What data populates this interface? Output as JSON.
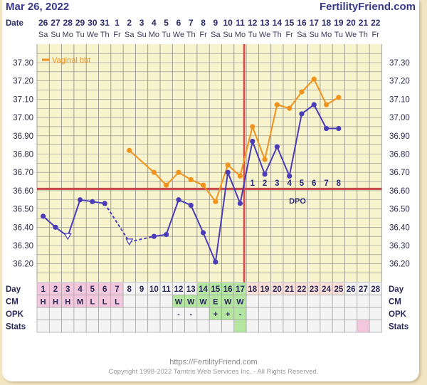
{
  "header": {
    "date": "Mar 26, 2022",
    "site": "FertilityFriend.com"
  },
  "footer": {
    "url": "https://FertilityFriend.com",
    "copyright": "Copyright 1998-2022 Tamtris Web Services Inc. - All Rights Reserved."
  },
  "chart_data": {
    "type": "line",
    "date_row_label": "Date",
    "dates": [
      "26",
      "27",
      "28",
      "29",
      "30",
      "31",
      "1",
      "2",
      "3",
      "4",
      "5",
      "6",
      "7",
      "8",
      "9",
      "10",
      "11",
      "12",
      "13",
      "14",
      "15",
      "16",
      "17",
      "18",
      "19",
      "20",
      "21",
      "22"
    ],
    "weekdays": [
      "Sa",
      "Su",
      "Mo",
      "Tu",
      "We",
      "Th",
      "Fr",
      "Sa",
      "Su",
      "Mo",
      "Tu",
      "We",
      "Th",
      "Fr",
      "Sa",
      "Su",
      "Mo",
      "Tu",
      "We",
      "Th",
      "Fr",
      "Sa",
      "Su",
      "Mo",
      "Tu",
      "We",
      "Th",
      "Fr"
    ],
    "y_ticks": [
      "37.30",
      "37.20",
      "37.10",
      "37.00",
      "36.90",
      "36.80",
      "36.70",
      "36.60",
      "36.50",
      "36.40",
      "36.30",
      "36.20"
    ],
    "ylim": [
      36.15,
      37.35
    ],
    "legend": "Vaginal bbt",
    "series": [
      {
        "name": "Vaginal bbt",
        "color": "#f0921e",
        "points": [
          [
            8,
            36.82
          ],
          [
            10,
            36.7
          ],
          [
            11,
            36.63
          ],
          [
            12,
            36.7
          ],
          [
            13,
            36.66
          ],
          [
            14,
            36.63
          ],
          [
            15,
            36.54
          ],
          [
            16,
            36.74
          ],
          [
            17,
            36.68
          ],
          [
            18,
            36.95
          ],
          [
            19,
            36.77
          ],
          [
            20,
            37.07
          ],
          [
            21,
            37.05
          ],
          [
            22,
            37.14
          ],
          [
            23,
            37.21
          ],
          [
            24,
            37.07
          ],
          [
            25,
            37.11
          ]
        ]
      },
      {
        "color": "#4a3cb8",
        "points": [
          [
            1,
            36.46
          ],
          [
            2,
            36.4
          ],
          [
            3,
            36.35
          ],
          [
            4,
            36.55
          ],
          [
            5,
            36.54
          ],
          [
            6,
            36.53
          ],
          [
            8,
            36.32
          ],
          [
            10,
            36.35
          ],
          [
            11,
            36.36
          ],
          [
            12,
            36.55
          ],
          [
            13,
            36.52
          ],
          [
            14,
            36.37
          ],
          [
            15,
            36.21
          ],
          [
            16,
            36.7
          ],
          [
            17,
            36.53
          ],
          [
            18,
            36.87
          ],
          [
            19,
            36.69
          ],
          [
            20,
            36.84
          ],
          [
            21,
            36.68
          ],
          [
            22,
            37.02
          ],
          [
            23,
            37.07
          ],
          [
            24,
            36.94
          ],
          [
            25,
            36.94
          ]
        ],
        "open_markers": [
          3,
          8
        ],
        "dashed_segments": [
          [
            6,
            8
          ],
          [
            8,
            10
          ]
        ]
      }
    ],
    "coverline": 36.61,
    "ovulation_day": 17,
    "dpo_label": "DPO",
    "dpo_numbers": [
      "1",
      "2",
      "3",
      "4",
      "5",
      "6",
      "7",
      "8"
    ],
    "day_row": {
      "label": "Day",
      "days": [
        "1",
        "2",
        "3",
        "4",
        "5",
        "6",
        "7",
        "8",
        "9",
        "10",
        "11",
        "12",
        "13",
        "14",
        "15",
        "16",
        "17",
        "18",
        "19",
        "20",
        "21",
        "22",
        "23",
        "24",
        "25",
        "26",
        "27",
        "28"
      ]
    },
    "cm_row": {
      "label": "CM",
      "values": [
        "H",
        "H",
        "H",
        "M",
        "L",
        "L",
        "L",
        "",
        "",
        "",
        "",
        "W",
        "W",
        "W",
        "E",
        "W",
        "W",
        "",
        "",
        "",
        "",
        "",
        "",
        "",
        "",
        "",
        "",
        ""
      ]
    },
    "opk_row": {
      "label": "OPK",
      "values": [
        "",
        "",
        "",
        "",
        "",
        "",
        "",
        "",
        "",
        "",
        "",
        "-",
        "-",
        "",
        "+",
        "+",
        "-",
        "",
        "",
        "",
        "",
        "",
        "",
        "",
        "",
        "",
        "",
        ""
      ]
    },
    "stats_row": {
      "label": "Stats"
    },
    "colors": {
      "plot_bg": "#f7f3cc",
      "grid": "#8d8d8d",
      "coverline": "#c24a4a",
      "ovulation": "#d24a4a",
      "menstrual": "#f3c8dd",
      "fertile": "#b4e6a2",
      "luteal": "#fde1d9",
      "dpo_text": "#2a2a7a"
    }
  }
}
